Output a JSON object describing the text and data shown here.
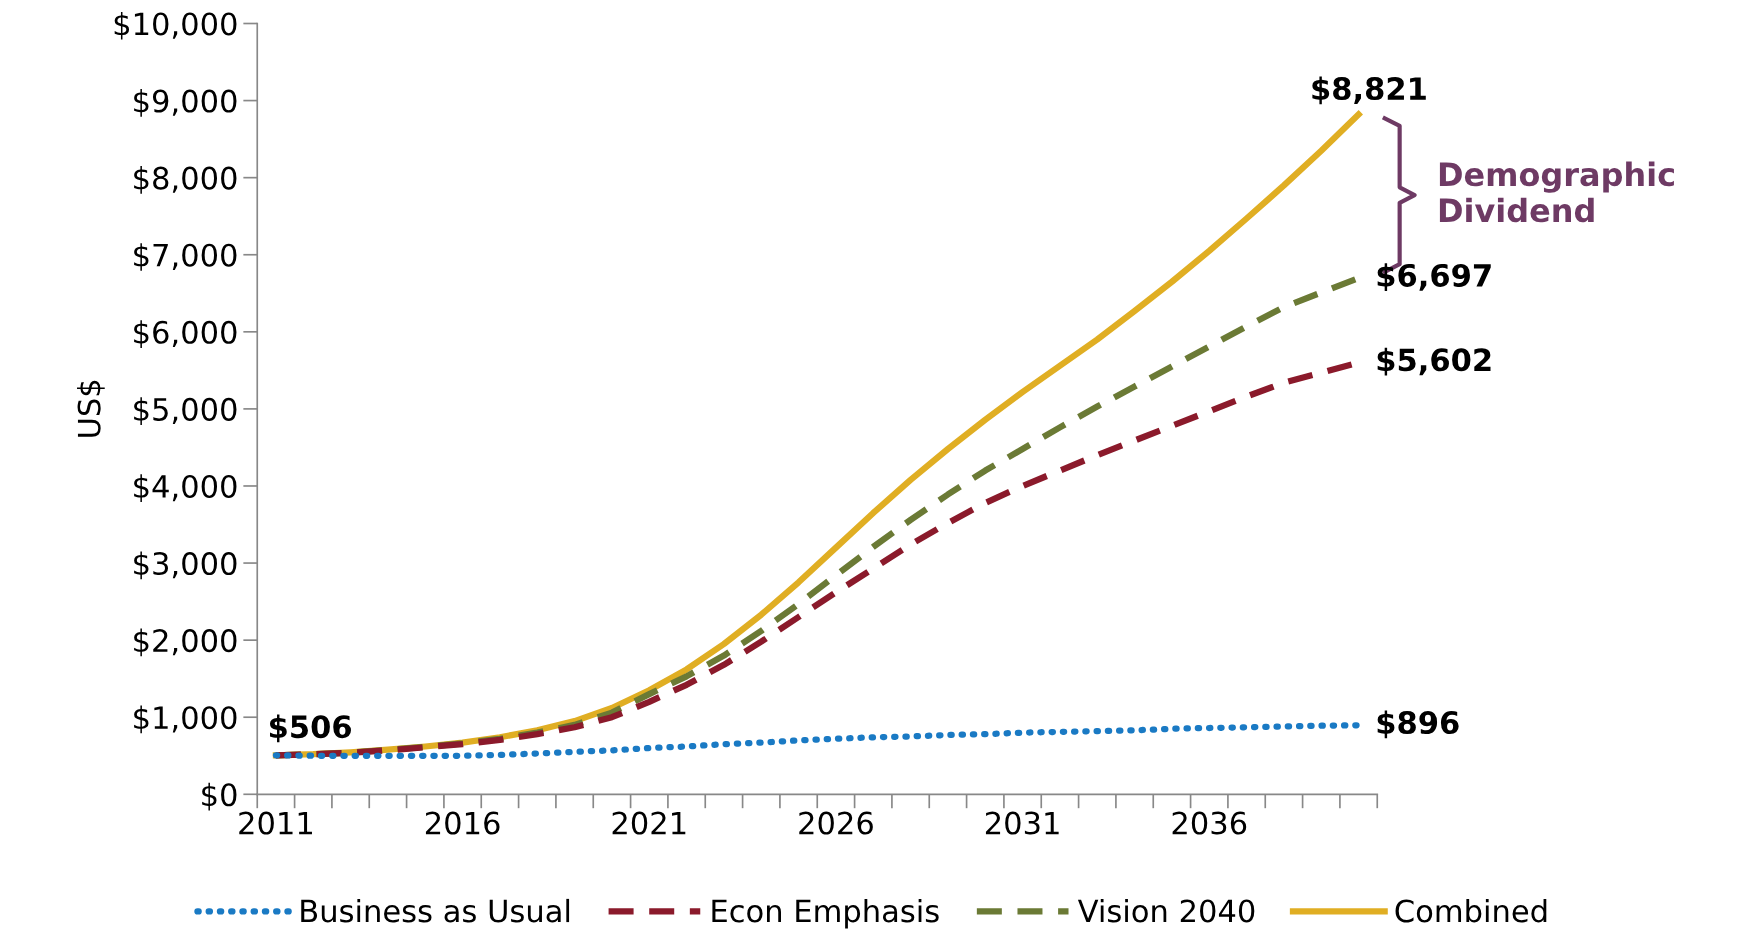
{
  "chart_data": {
    "type": "line",
    "ylabel": "US$",
    "categories": [
      "2011",
      null,
      null,
      null,
      null,
      "2016",
      null,
      null,
      null,
      null,
      "2021",
      null,
      null,
      null,
      null,
      "2026",
      null,
      null,
      null,
      null,
      "2031",
      null,
      null,
      null,
      null,
      "2036",
      null,
      null,
      null,
      null
    ],
    "series": [
      {
        "name": "Business as Usual",
        "color": "#1a7ac4",
        "line_style": "dotted",
        "values": [
          506,
          500,
          500,
          500,
          500,
          500,
          510,
          530,
          550,
          570,
          600,
          620,
          650,
          670,
          700,
          720,
          740,
          750,
          770,
          780,
          800,
          810,
          820,
          830,
          850,
          860,
          870,
          880,
          890,
          896
        ],
        "value_labels": [
          "$506",
          null,
          null,
          null,
          null,
          null,
          null,
          null,
          null,
          null,
          null,
          null,
          null,
          null,
          null,
          null,
          null,
          null,
          null,
          null,
          null,
          null,
          null,
          null,
          null,
          null,
          null,
          null,
          null,
          "$896"
        ]
      },
      {
        "name": "Econ Emphasis",
        "color": "#8b1a2b",
        "line_style": "dashed",
        "values": [
          506,
          520,
          540,
          570,
          610,
          650,
          705,
          780,
          870,
          1000,
          1200,
          1420,
          1680,
          1980,
          2300,
          2620,
          2930,
          3240,
          3520,
          3780,
          4000,
          4200,
          4400,
          4590,
          4780,
          4970,
          5160,
          5340,
          5470,
          5602
        ],
        "value_labels": [
          null,
          null,
          null,
          null,
          null,
          null,
          null,
          null,
          null,
          null,
          null,
          null,
          null,
          null,
          null,
          null,
          null,
          null,
          null,
          null,
          null,
          null,
          null,
          null,
          null,
          null,
          null,
          null,
          null,
          "$5,602"
        ]
      },
      {
        "name": "Vision 2040",
        "color": "#6b7a35",
        "line_style": "dashed",
        "values": [
          506,
          520,
          540,
          575,
          615,
          660,
          720,
          800,
          900,
          1060,
          1300,
          1530,
          1800,
          2120,
          2470,
          2840,
          3210,
          3560,
          3890,
          4200,
          4480,
          4760,
          5030,
          5290,
          5550,
          5810,
          6070,
          6320,
          6510,
          6697
        ],
        "value_labels": [
          null,
          null,
          null,
          null,
          null,
          null,
          null,
          null,
          null,
          null,
          null,
          null,
          null,
          null,
          null,
          null,
          null,
          null,
          null,
          null,
          null,
          null,
          null,
          null,
          null,
          null,
          null,
          null,
          null,
          "$6,697"
        ]
      },
      {
        "name": "Combined",
        "color": "#e0ae23",
        "line_style": "solid",
        "values": [
          506,
          520,
          545,
          580,
          620,
          670,
          740,
          830,
          950,
          1120,
          1350,
          1620,
          1950,
          2330,
          2750,
          3200,
          3650,
          4080,
          4480,
          4860,
          5220,
          5560,
          5900,
          6270,
          6650,
          7050,
          7470,
          7900,
          8350,
          8821
        ],
        "value_labels": [
          null,
          null,
          null,
          null,
          null,
          null,
          null,
          null,
          null,
          null,
          null,
          null,
          null,
          null,
          null,
          null,
          null,
          null,
          null,
          null,
          null,
          null,
          null,
          null,
          null,
          null,
          null,
          null,
          null,
          "$8,821"
        ]
      }
    ],
    "ylim": [
      0,
      10000
    ],
    "yticks": [
      {
        "value": 0,
        "label": "$0"
      },
      {
        "value": 1000,
        "label": "$1,000"
      },
      {
        "value": 2000,
        "label": "$2,000"
      },
      {
        "value": 3000,
        "label": "$3,000"
      },
      {
        "value": 4000,
        "label": "$4,000"
      },
      {
        "value": 5000,
        "label": "$5,000"
      },
      {
        "value": 6000,
        "label": "$6,000"
      },
      {
        "value": 7000,
        "label": "$7,000"
      },
      {
        "value": 8000,
        "label": "$8,000"
      },
      {
        "value": 9000,
        "label": "$9,000"
      },
      {
        "value": 10000,
        "label": "$10,000"
      }
    ],
    "annotations": [
      "Demographic\nDividend"
    ],
    "grid": false,
    "legend": "bottom",
    "marker": "none"
  }
}
